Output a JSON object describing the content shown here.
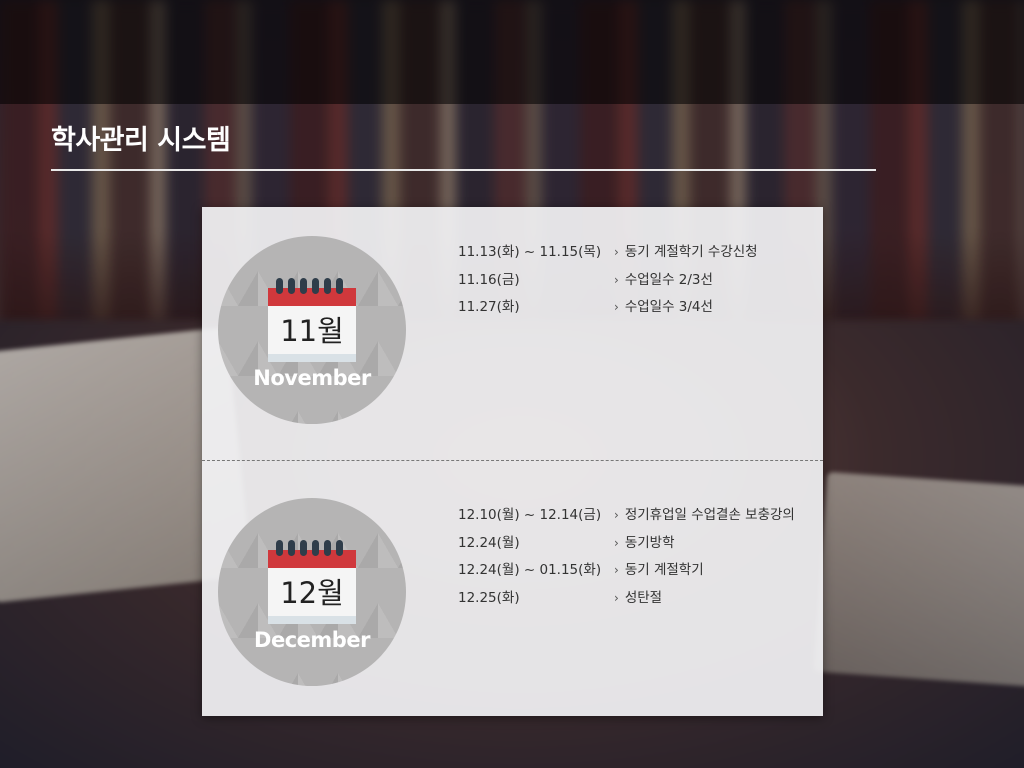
{
  "page": {
    "title": "학사관리 시스템"
  },
  "months": [
    {
      "number_label": "11월",
      "name": "November",
      "events": [
        {
          "date": "11.13(화) ~ 11.15(목)",
          "desc": "동기 계절학기 수강신청"
        },
        {
          "date": "11.16(금)",
          "desc": "수업일수 2/3선"
        },
        {
          "date": "11.27(화)",
          "desc": "수업일수 3/4선"
        }
      ]
    },
    {
      "number_label": "12월",
      "name": "December",
      "events": [
        {
          "date": "12.10(월) ~ 12.14(금)",
          "desc": "정기휴업일 수업결손 보충강의"
        },
        {
          "date": "12.24(월)",
          "desc": "동기방학"
        },
        {
          "date": "12.24(월) ~ 01.15(화)",
          "desc": "동기 계절학기"
        },
        {
          "date": "12.25(화)",
          "desc": "성탄절"
        }
      ]
    }
  ],
  "icons": {
    "calendar": "calendar-icon",
    "bullet": "chevron-right-icon"
  },
  "colors": {
    "calendar_top": "#d0383c",
    "calendar_rings": "#2f3d4a",
    "circle": "#b5b4b4",
    "panel": "#f2f2f4"
  }
}
